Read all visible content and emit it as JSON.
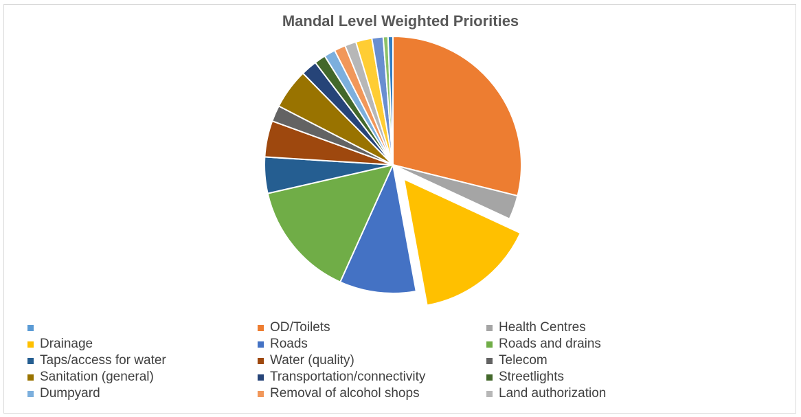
{
  "chart_data": {
    "type": "pie",
    "title": "Mandal Level Weighted Priorities",
    "legend_position": "bottom",
    "slices": [
      {
        "label": "",
        "value": 0.0,
        "color": "#5b9bd5"
      },
      {
        "label": "OD/Toilets",
        "value": 28.5,
        "color": "#ed7d31"
      },
      {
        "label": "Health Centres",
        "value": 3.0,
        "color": "#a5a5a5"
      },
      {
        "label": "Drainage",
        "value": 15.0,
        "color": "#ffc000",
        "exploded": true
      },
      {
        "label": "Roads",
        "value": 9.5,
        "color": "#4472c4"
      },
      {
        "label": "Roads and drains",
        "value": 14.5,
        "color": "#70ad47"
      },
      {
        "label": "Taps/access for water",
        "value": 4.5,
        "color": "#255e91"
      },
      {
        "label": "Water (quality)",
        "value": 4.5,
        "color": "#9e480e"
      },
      {
        "label": "Telecom",
        "value": 2.0,
        "color": "#636363"
      },
      {
        "label": "Sanitation (general)",
        "value": 5.0,
        "color": "#997300"
      },
      {
        "label": "Transportation/connectivity",
        "value": 2.0,
        "color": "#264478"
      },
      {
        "label": "Streetlights",
        "value": 1.4,
        "color": "#43682b"
      },
      {
        "label": "Dumpyard",
        "value": 1.4,
        "color": "#7cafdd"
      },
      {
        "label": "Removal of alcohol shops",
        "value": 1.4,
        "color": "#f1975a"
      },
      {
        "label": "Land authorization",
        "value": 1.4,
        "color": "#b7b7b7"
      },
      {
        "label": "",
        "value": 2.0,
        "color": "#ffcd33"
      },
      {
        "label": "",
        "value": 1.4,
        "color": "#698ed0"
      },
      {
        "label": "",
        "value": 0.6,
        "color": "#8cc168"
      },
      {
        "label": "",
        "value": 0.6,
        "color": "#327dc2"
      }
    ]
  }
}
